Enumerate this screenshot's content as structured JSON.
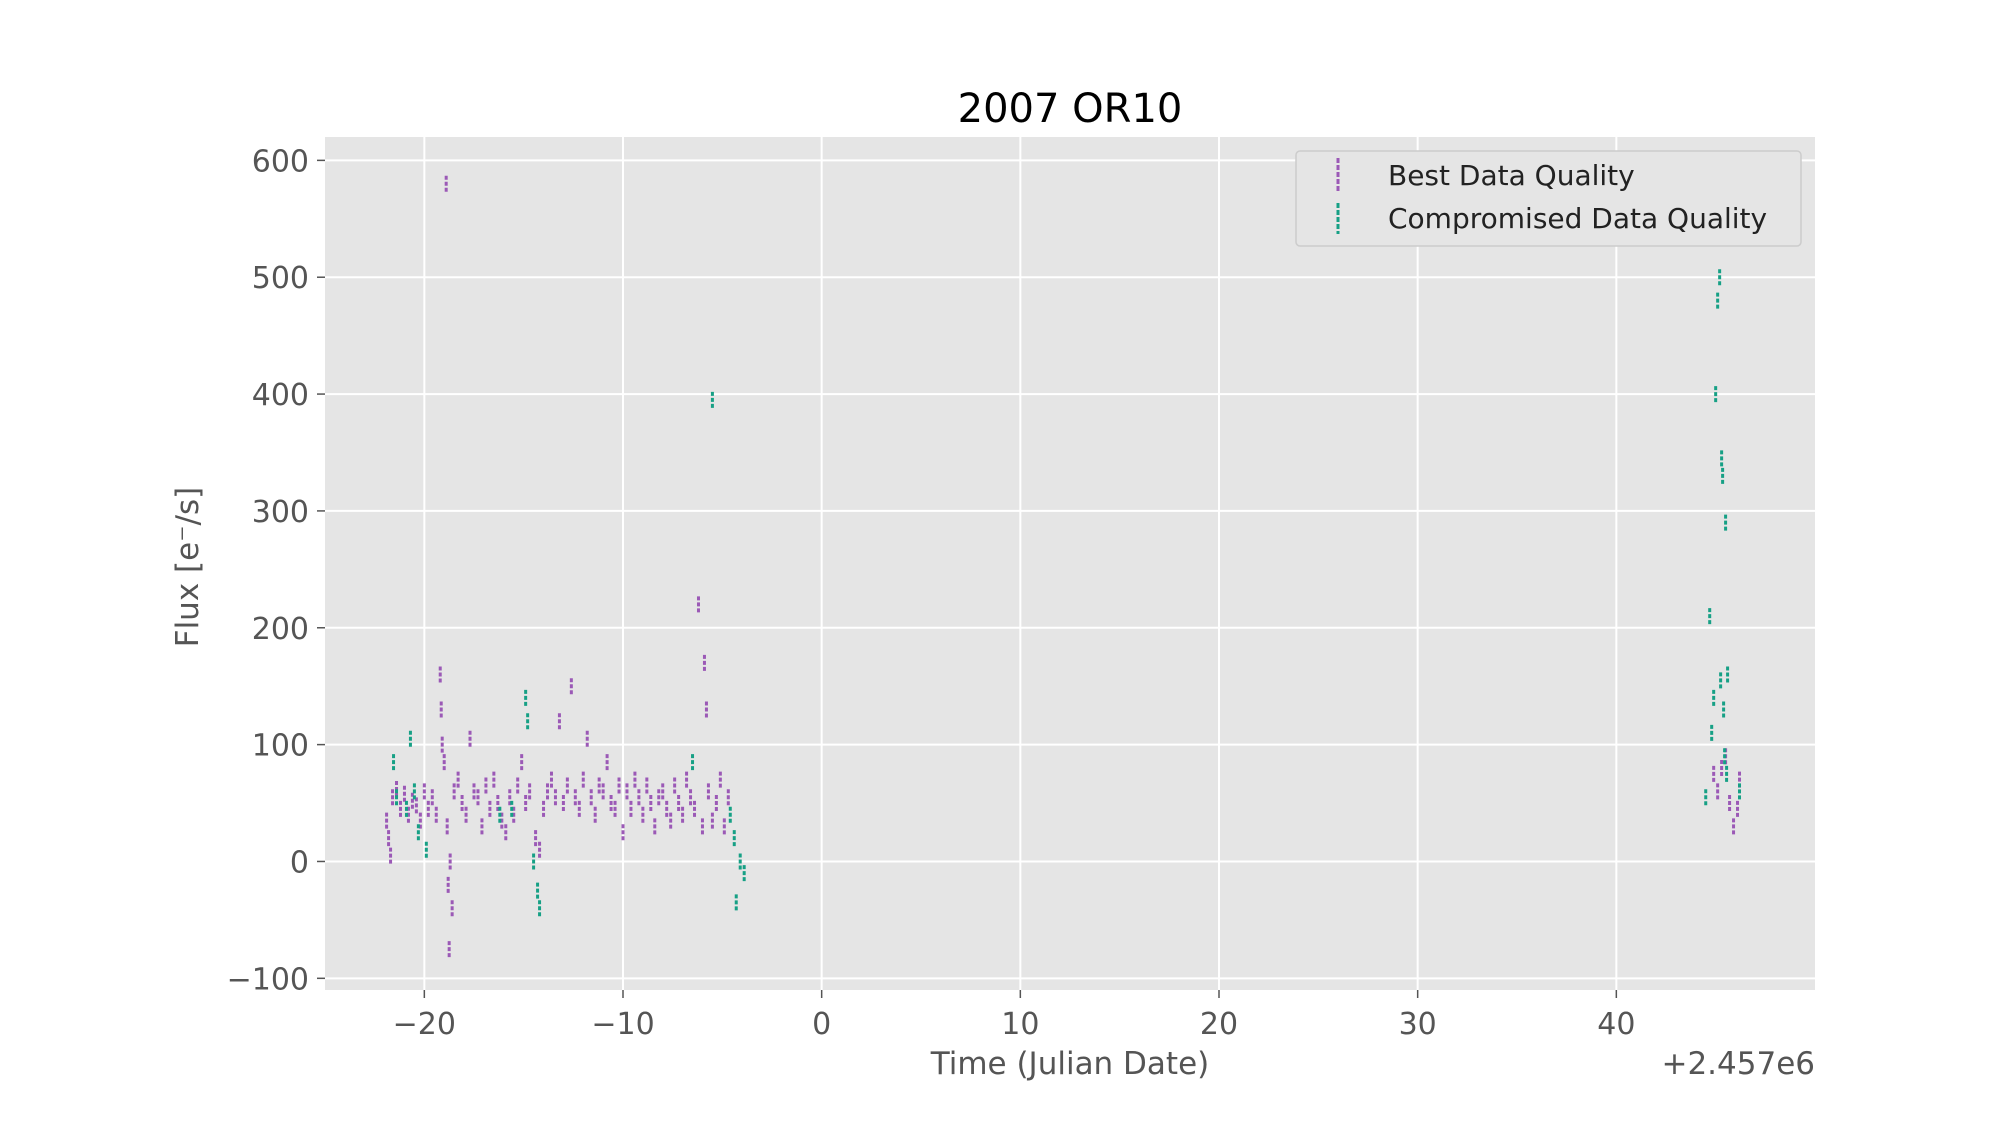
{
  "chart_data": {
    "type": "scatter",
    "title": "2007 OR10",
    "xlabel": "Time (Julian Date)",
    "ylabel": "Flux [e⁻/s]",
    "x_offset_label": "+2.457e6",
    "xlim": [
      -25,
      50
    ],
    "ylim": [
      -110,
      620
    ],
    "xticks": [
      -20,
      -10,
      0,
      10,
      20,
      30,
      40
    ],
    "xtick_labels": [
      "−20",
      "−10",
      "0",
      "10",
      "20",
      "30",
      "40"
    ],
    "yticks": [
      -100,
      0,
      100,
      200,
      300,
      400,
      500,
      600
    ],
    "ytick_labels": [
      "−100",
      "0",
      "100",
      "200",
      "300",
      "400",
      "500",
      "600"
    ],
    "grid": true,
    "legend_position": "top-right",
    "background_color": "#e5e5e5",
    "series": [
      {
        "name": "Best Data Quality",
        "color": "#9b59b6",
        "marker": "errorbar",
        "points": [
          [
            -21.9,
            35
          ],
          [
            -21.8,
            20
          ],
          [
            -21.7,
            5
          ],
          [
            -21.6,
            55
          ],
          [
            -21.4,
            62
          ],
          [
            -21.2,
            45
          ],
          [
            -21.0,
            58
          ],
          [
            -20.8,
            40
          ],
          [
            -20.6,
            52
          ],
          [
            -20.4,
            48
          ],
          [
            -20.2,
            35
          ],
          [
            -20.0,
            60
          ],
          [
            -19.8,
            45
          ],
          [
            -19.6,
            55
          ],
          [
            -19.4,
            40
          ],
          [
            -19.2,
            160
          ],
          [
            -19.15,
            130
          ],
          [
            -19.1,
            100
          ],
          [
            -19.0,
            85
          ],
          [
            -18.9,
            580
          ],
          [
            -18.85,
            30
          ],
          [
            -18.8,
            -20
          ],
          [
            -18.75,
            -75
          ],
          [
            -18.7,
            0
          ],
          [
            -18.6,
            -40
          ],
          [
            -18.5,
            60
          ],
          [
            -18.3,
            70
          ],
          [
            -18.1,
            50
          ],
          [
            -17.9,
            40
          ],
          [
            -17.7,
            105
          ],
          [
            -17.5,
            60
          ],
          [
            -17.3,
            55
          ],
          [
            -17.1,
            30
          ],
          [
            -16.9,
            65
          ],
          [
            -16.7,
            45
          ],
          [
            -16.5,
            70
          ],
          [
            -16.3,
            50
          ],
          [
            -16.1,
            35
          ],
          [
            -15.9,
            25
          ],
          [
            -15.7,
            55
          ],
          [
            -15.5,
            40
          ],
          [
            -15.3,
            65
          ],
          [
            -15.1,
            85
          ],
          [
            -14.9,
            50
          ],
          [
            -14.7,
            60
          ],
          [
            -14.4,
            20
          ],
          [
            -14.2,
            10
          ],
          [
            -14.0,
            45
          ],
          [
            -13.8,
            60
          ],
          [
            -13.6,
            70
          ],
          [
            -13.4,
            55
          ],
          [
            -13.2,
            120
          ],
          [
            -13.0,
            50
          ],
          [
            -12.8,
            65
          ],
          [
            -12.6,
            150
          ],
          [
            -12.4,
            55
          ],
          [
            -12.2,
            45
          ],
          [
            -12.0,
            70
          ],
          [
            -11.8,
            105
          ],
          [
            -11.6,
            55
          ],
          [
            -11.4,
            40
          ],
          [
            -11.2,
            65
          ],
          [
            -11.0,
            60
          ],
          [
            -10.8,
            85
          ],
          [
            -10.6,
            50
          ],
          [
            -10.4,
            45
          ],
          [
            -10.2,
            65
          ],
          [
            -10.0,
            25
          ],
          [
            -9.8,
            60
          ],
          [
            -9.6,
            45
          ],
          [
            -9.4,
            70
          ],
          [
            -9.2,
            55
          ],
          [
            -9.0,
            40
          ],
          [
            -8.8,
            65
          ],
          [
            -8.6,
            50
          ],
          [
            -8.4,
            30
          ],
          [
            -8.2,
            55
          ],
          [
            -8.0,
            60
          ],
          [
            -7.8,
            45
          ],
          [
            -7.6,
            35
          ],
          [
            -7.4,
            65
          ],
          [
            -7.2,
            50
          ],
          [
            -7.0,
            40
          ],
          [
            -6.8,
            70
          ],
          [
            -6.6,
            55
          ],
          [
            -6.4,
            45
          ],
          [
            -6.2,
            220
          ],
          [
            -6.0,
            30
          ],
          [
            -5.9,
            170
          ],
          [
            -5.8,
            130
          ],
          [
            -5.7,
            60
          ],
          [
            -5.5,
            35
          ],
          [
            -5.3,
            50
          ],
          [
            -5.1,
            70
          ],
          [
            -4.9,
            30
          ],
          [
            -4.7,
            55
          ],
          [
            44.9,
            75
          ],
          [
            45.1,
            60
          ],
          [
            45.3,
            80
          ],
          [
            45.5,
            90
          ],
          [
            45.7,
            50
          ],
          [
            45.9,
            30
          ],
          [
            46.1,
            45
          ],
          [
            46.2,
            70
          ]
        ]
      },
      {
        "name": "Compromised Data Quality",
        "color": "#16a085",
        "marker": "errorbar",
        "points": [
          [
            -21.55,
            85
          ],
          [
            -21.4,
            55
          ],
          [
            -20.9,
            45
          ],
          [
            -20.7,
            105
          ],
          [
            -20.5,
            60
          ],
          [
            -20.3,
            25
          ],
          [
            -19.9,
            10
          ],
          [
            -16.2,
            40
          ],
          [
            -15.6,
            45
          ],
          [
            -14.9,
            140
          ],
          [
            -14.8,
            120
          ],
          [
            -14.5,
            0
          ],
          [
            -14.3,
            -25
          ],
          [
            -14.2,
            -40
          ],
          [
            -6.5,
            85
          ],
          [
            -5.5,
            395
          ],
          [
            -4.6,
            40
          ],
          [
            -4.4,
            20
          ],
          [
            -4.3,
            -35
          ],
          [
            -4.1,
            0
          ],
          [
            -3.9,
            -10
          ],
          [
            44.5,
            55
          ],
          [
            44.7,
            210
          ],
          [
            44.8,
            110
          ],
          [
            44.9,
            140
          ],
          [
            45.0,
            400
          ],
          [
            45.1,
            480
          ],
          [
            45.2,
            500
          ],
          [
            45.25,
            155
          ],
          [
            45.3,
            345
          ],
          [
            45.35,
            330
          ],
          [
            45.4,
            130
          ],
          [
            45.45,
            90
          ],
          [
            45.5,
            290
          ],
          [
            45.55,
            75
          ],
          [
            45.6,
            160
          ],
          [
            46.2,
            60
          ]
        ]
      }
    ]
  }
}
